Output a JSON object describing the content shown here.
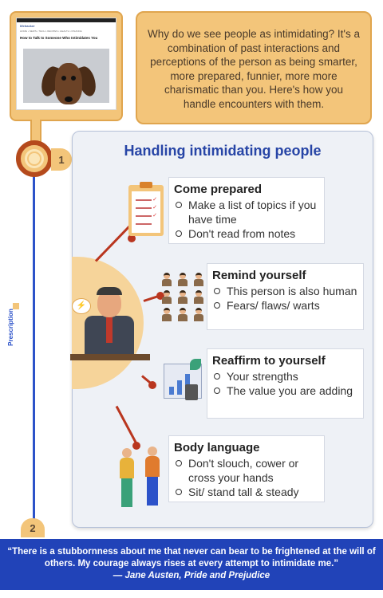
{
  "thumbnail": {
    "brand": "lifehacker",
    "nav_text": "HOME • NEWS • TECH • RECIPES • HEALTH • FINANCE",
    "headline": "How to Talk to Someone Who Intimidates You"
  },
  "intro": {
    "text": "Why do we see people as intimidating? It's a combination of past interactions and perceptions of the person as being smarter, more prepared, funnier, more more charismatic than you. Here's how you handle encounters with them."
  },
  "timeline": {
    "step1": "1",
    "step2": "2",
    "side_label": "Prescription"
  },
  "panel": {
    "title": "Handling intimidating people"
  },
  "tips": [
    {
      "title": "Come prepared",
      "items": [
        "Make a list of topics if you have time",
        "Don't read from notes"
      ]
    },
    {
      "title": "Remind yourself",
      "items": [
        "This person is also human",
        "Fears/ flaws/ warts"
      ]
    },
    {
      "title": "Reaffirm to yourself",
      "items": [
        "Your strengths",
        "The value you are adding"
      ]
    },
    {
      "title": "Body language",
      "items": [
        "Don't slouch, cower or cross your hands",
        "Sit/ stand tall & steady"
      ]
    }
  ],
  "quote": {
    "text": "“There is a stubbornness about me that never can bear to be frightened at the will of others. My courage always rises at every attempt to intimidate me.”",
    "author": "— Jane Austen, Pride and Prejudice"
  },
  "colors": {
    "accent_blue": "#2143b8",
    "accent_orange": "#f3c57a",
    "connector_red": "#b9361f"
  }
}
